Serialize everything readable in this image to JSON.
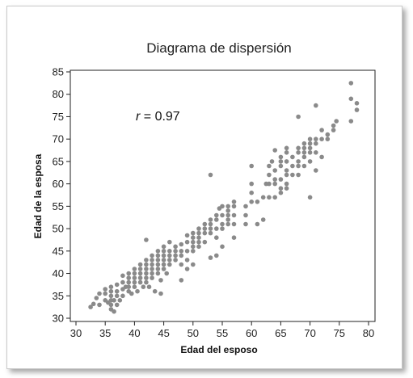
{
  "chart_data": {
    "type": "scatter",
    "title": "Diagrama de dispersión",
    "xlabel": "Edad del esposo",
    "ylabel": "Edad de la esposa",
    "xlim": [
      30,
      80
    ],
    "ylim": [
      30,
      85
    ],
    "xticks": [
      30,
      35,
      40,
      45,
      50,
      55,
      60,
      65,
      70,
      75,
      80
    ],
    "yticks": [
      30,
      35,
      40,
      45,
      50,
      55,
      60,
      65,
      70,
      75,
      80,
      85
    ],
    "annotation": {
      "var": "r",
      "text": " = 0.97"
    },
    "grid": false,
    "point_color": "#8a8a8a",
    "points": [
      [
        32.5,
        32.5
      ],
      [
        33,
        33.2
      ],
      [
        33.5,
        34.5
      ],
      [
        34,
        33
      ],
      [
        34,
        35.5
      ],
      [
        35,
        34
      ],
      [
        35,
        35.5
      ],
      [
        35,
        36.5
      ],
      [
        35.5,
        33.5
      ],
      [
        36,
        32
      ],
      [
        36,
        33
      ],
      [
        36,
        34
      ],
      [
        36,
        35
      ],
      [
        36,
        36
      ],
      [
        36,
        37
      ],
      [
        36.5,
        31.5
      ],
      [
        36.5,
        34
      ],
      [
        37,
        33
      ],
      [
        37,
        35
      ],
      [
        37,
        36
      ],
      [
        37,
        37.5
      ],
      [
        37.5,
        34
      ],
      [
        38,
        35
      ],
      [
        38,
        36.5
      ],
      [
        38,
        38
      ],
      [
        38,
        39.5
      ],
      [
        38.5,
        37
      ],
      [
        39,
        36
      ],
      [
        39,
        37
      ],
      [
        39,
        38
      ],
      [
        39,
        39
      ],
      [
        39,
        40
      ],
      [
        39.5,
        35.5
      ],
      [
        40,
        37
      ],
      [
        40,
        38
      ],
      [
        40,
        39
      ],
      [
        40,
        40
      ],
      [
        40,
        41
      ],
      [
        40.5,
        36
      ],
      [
        41,
        38
      ],
      [
        41,
        39
      ],
      [
        41,
        40
      ],
      [
        41,
        41
      ],
      [
        41,
        42
      ],
      [
        41.5,
        37
      ],
      [
        42,
        38
      ],
      [
        42,
        39
      ],
      [
        42,
        40
      ],
      [
        42,
        41
      ],
      [
        42,
        42
      ],
      [
        42,
        43
      ],
      [
        42,
        47.5
      ],
      [
        42.5,
        37
      ],
      [
        43,
        39
      ],
      [
        43,
        40
      ],
      [
        43,
        41
      ],
      [
        43,
        42
      ],
      [
        43,
        43
      ],
      [
        43,
        44
      ],
      [
        43.5,
        36
      ],
      [
        44,
        40
      ],
      [
        44,
        41
      ],
      [
        44,
        42
      ],
      [
        44,
        43
      ],
      [
        44,
        44
      ],
      [
        44,
        45
      ],
      [
        44.5,
        35.5
      ],
      [
        44.5,
        38.5
      ],
      [
        45,
        41
      ],
      [
        45,
        42
      ],
      [
        45,
        43
      ],
      [
        45,
        44
      ],
      [
        45,
        45
      ],
      [
        45,
        46
      ],
      [
        45.5,
        40
      ],
      [
        46,
        42
      ],
      [
        46,
        43
      ],
      [
        46,
        44
      ],
      [
        46,
        45
      ],
      [
        46,
        47
      ],
      [
        47,
        43
      ],
      [
        47,
        44
      ],
      [
        47,
        45
      ],
      [
        47,
        46
      ],
      [
        48,
        38.5
      ],
      [
        48,
        42
      ],
      [
        48,
        44
      ],
      [
        48,
        45
      ],
      [
        48,
        46.5
      ],
      [
        49,
        41
      ],
      [
        49,
        43
      ],
      [
        49,
        45
      ],
      [
        49,
        47
      ],
      [
        49,
        48.5
      ],
      [
        50,
        42
      ],
      [
        50,
        45
      ],
      [
        50,
        46
      ],
      [
        50,
        47
      ],
      [
        50,
        48
      ],
      [
        50,
        49
      ],
      [
        51,
        46
      ],
      [
        51,
        47
      ],
      [
        51,
        48
      ],
      [
        51,
        49
      ],
      [
        51,
        50
      ],
      [
        52,
        47
      ],
      [
        52,
        49
      ],
      [
        52,
        50
      ],
      [
        52,
        51
      ],
      [
        53,
        43.5
      ],
      [
        53,
        49
      ],
      [
        53,
        50
      ],
      [
        53,
        51
      ],
      [
        53,
        52
      ],
      [
        53,
        62
      ],
      [
        54,
        44
      ],
      [
        54,
        48
      ],
      [
        54,
        50
      ],
      [
        54,
        52
      ],
      [
        54,
        53
      ],
      [
        54.5,
        54.5
      ],
      [
        55,
        46
      ],
      [
        55,
        50
      ],
      [
        55,
        51
      ],
      [
        55,
        53
      ],
      [
        55,
        55
      ],
      [
        56,
        51
      ],
      [
        56,
        52
      ],
      [
        56,
        53
      ],
      [
        56,
        54
      ],
      [
        56,
        55
      ],
      [
        57,
        48
      ],
      [
        57,
        51
      ],
      [
        57,
        53
      ],
      [
        57,
        55
      ],
      [
        57,
        56
      ],
      [
        59,
        51
      ],
      [
        59,
        53
      ],
      [
        59,
        55
      ],
      [
        60,
        56
      ],
      [
        60,
        58
      ],
      [
        60,
        60
      ],
      [
        60,
        64
      ],
      [
        61,
        51
      ],
      [
        61,
        56
      ],
      [
        62,
        52
      ],
      [
        62,
        57
      ],
      [
        62.5,
        60
      ],
      [
        63,
        57
      ],
      [
        63,
        60
      ],
      [
        63,
        62
      ],
      [
        63,
        64
      ],
      [
        63.5,
        65
      ],
      [
        64,
        57
      ],
      [
        64,
        60
      ],
      [
        64,
        61
      ],
      [
        64,
        63
      ],
      [
        64,
        67.5
      ],
      [
        65,
        58
      ],
      [
        65,
        59
      ],
      [
        65,
        61
      ],
      [
        65,
        64
      ],
      [
        65,
        65
      ],
      [
        65,
        66
      ],
      [
        66,
        59
      ],
      [
        66,
        60
      ],
      [
        66,
        62
      ],
      [
        66,
        63
      ],
      [
        66,
        65
      ],
      [
        66,
        67
      ],
      [
        66,
        68
      ],
      [
        67,
        62
      ],
      [
        67,
        64
      ],
      [
        67,
        66
      ],
      [
        68,
        62
      ],
      [
        68,
        64
      ],
      [
        68,
        65
      ],
      [
        68,
        67
      ],
      [
        68,
        68
      ],
      [
        68,
        75
      ],
      [
        69,
        64
      ],
      [
        69,
        66
      ],
      [
        69,
        67
      ],
      [
        69,
        68
      ],
      [
        69,
        69
      ],
      [
        70,
        57
      ],
      [
        70,
        65
      ],
      [
        70,
        67
      ],
      [
        70,
        68
      ],
      [
        70,
        69
      ],
      [
        70,
        70
      ],
      [
        71,
        63
      ],
      [
        71,
        67
      ],
      [
        71,
        69
      ],
      [
        71,
        70
      ],
      [
        71,
        77.5
      ],
      [
        72,
        66
      ],
      [
        72,
        70
      ],
      [
        72,
        72
      ],
      [
        73,
        70
      ],
      [
        73,
        71
      ],
      [
        74,
        72
      ],
      [
        74,
        73
      ],
      [
        74.5,
        74
      ],
      [
        77,
        74
      ],
      [
        77,
        79
      ],
      [
        77,
        82.5
      ],
      [
        78,
        76.5
      ],
      [
        78,
        78
      ]
    ]
  }
}
